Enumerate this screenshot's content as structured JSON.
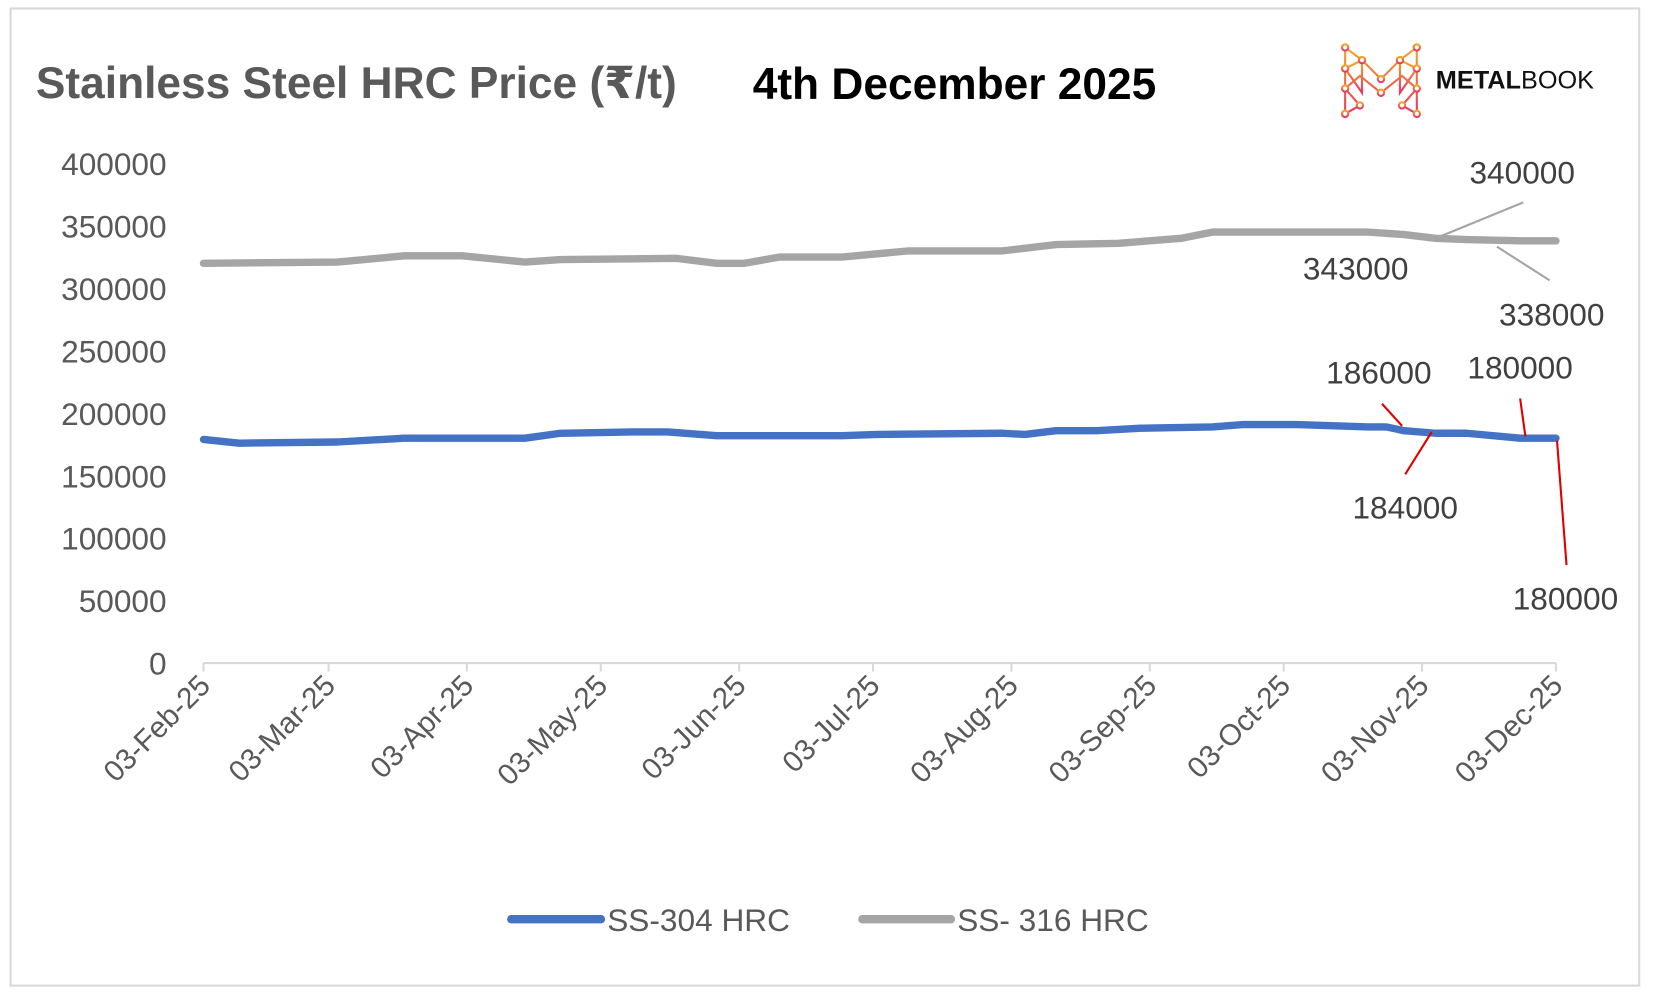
{
  "chart_data": {
    "type": "line",
    "title": "Stainless Steel HRC Price (₹/t)",
    "subtitle": "4th December 2025",
    "brand": "METALBOOK",
    "brand_bold": "METAL",
    "brand_light": "BOOK",
    "xlabel": "",
    "ylabel": "",
    "ylim": [
      0,
      400000
    ],
    "yticks": [
      "0",
      "50000",
      "100000",
      "150000",
      "200000",
      "250000",
      "300000",
      "350000",
      "400000"
    ],
    "xlim_days": [
      0,
      303
    ],
    "xticks": [
      {
        "label": "03-Feb-25",
        "day": 0
      },
      {
        "label": "03-Mar-25",
        "day": 28
      },
      {
        "label": "03-Apr-25",
        "day": 59
      },
      {
        "label": "03-May-25",
        "day": 89
      },
      {
        "label": "03-Jun-25",
        "day": 120
      },
      {
        "label": "03-Jul-25",
        "day": 150
      },
      {
        "label": "03-Aug-25",
        "day": 181
      },
      {
        "label": "03-Sep-25",
        "day": 212
      },
      {
        "label": "03-Oct-25",
        "day": 242
      },
      {
        "label": "03-Nov-25",
        "day": 273
      },
      {
        "label": "03-Dec-25",
        "day": 303
      }
    ],
    "grid": false,
    "legend_position": "bottom",
    "series": [
      {
        "name": "SS-304 HRC",
        "color": "#4472C4",
        "days": [
          0,
          8,
          30,
          45,
          72,
          80,
          96,
          104,
          115,
          143,
          151,
          179,
          184,
          191,
          200,
          210,
          226,
          233,
          245,
          261,
          265,
          269,
          276,
          283,
          295,
          303
        ],
        "values": [
          179000,
          176000,
          177000,
          180000,
          180000,
          184000,
          185000,
          185000,
          182000,
          182000,
          183000,
          184000,
          183000,
          186000,
          186000,
          188000,
          189000,
          191000,
          191000,
          189000,
          189000,
          186000,
          184000,
          184000,
          180000,
          180000
        ],
        "annotations": [
          {
            "text": "186000",
            "day": 269,
            "value": 186000
          },
          {
            "text": "184000",
            "day": 276,
            "value": 184000
          },
          {
            "text": "180000",
            "day": 295,
            "value": 180000
          },
          {
            "text": "180000",
            "day": 303,
            "value": 180000
          }
        ]
      },
      {
        "name": "SS- 316 HRC",
        "color": "#A5A5A5",
        "days": [
          0,
          30,
          45,
          58,
          72,
          80,
          106,
          115,
          121,
          129,
          143,
          158,
          179,
          191,
          205,
          219,
          226,
          261,
          269,
          276,
          283,
          295,
          303
        ],
        "values": [
          320000,
          321000,
          326000,
          326000,
          321000,
          323000,
          324000,
          320000,
          320000,
          325000,
          325000,
          330000,
          330000,
          335000,
          336000,
          340000,
          345000,
          345000,
          343000,
          340000,
          339000,
          338000,
          338000
        ],
        "annotations": [
          {
            "text": "343000",
            "day": 269,
            "value": 343000
          },
          {
            "text": "340000",
            "day": 276,
            "value": 340000
          },
          {
            "text": "338000",
            "day": 295,
            "value": 338000
          }
        ]
      }
    ]
  }
}
